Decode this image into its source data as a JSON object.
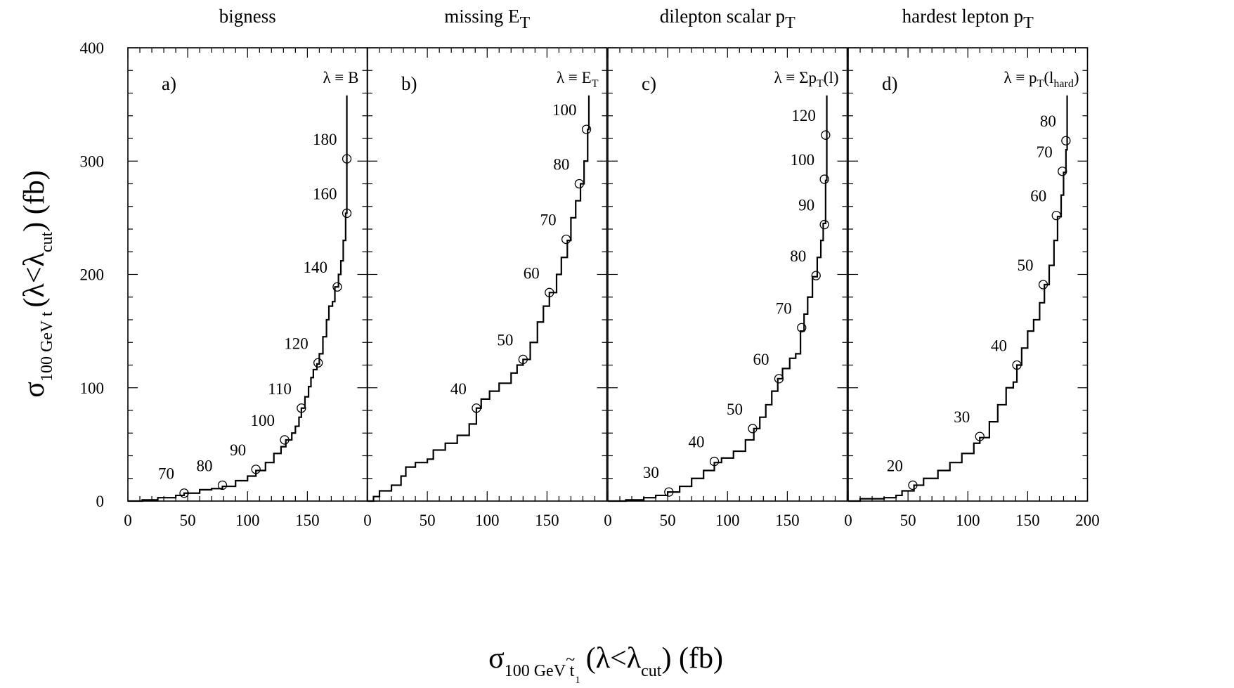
{
  "y_axis_title": {
    "main": "σ",
    "sub": "100 GeV t",
    "rest": "(λ<λ",
    "sub2": "cut",
    "end": ") (fb)"
  },
  "x_axis_title": {
    "main": "σ",
    "sub": "100 GeV t",
    "tilde": "~",
    "sub_sub": "1",
    "rest": "(λ<λ",
    "sub2": "cut",
    "end": ") (fb)"
  },
  "chart_data": [
    {
      "type": "line",
      "title": "bigness",
      "panel_label": "a)",
      "lambda_label": "λ ≡ B",
      "xlim": [
        0,
        200
      ],
      "ylim": [
        0,
        400
      ],
      "x_ticks": [
        "0",
        "50",
        "100",
        "150"
      ],
      "y_ticks": [
        "0",
        "100",
        "200",
        "300",
        "400"
      ],
      "curve": [
        [
          0,
          0
        ],
        [
          12,
          1
        ],
        [
          25,
          3
        ],
        [
          40,
          5
        ],
        [
          47,
          7
        ],
        [
          60,
          10
        ],
        [
          70,
          11
        ],
        [
          79,
          13
        ],
        [
          90,
          18
        ],
        [
          100,
          22
        ],
        [
          107,
          27
        ],
        [
          115,
          34
        ],
        [
          122,
          42
        ],
        [
          128,
          48
        ],
        [
          132,
          54
        ],
        [
          137,
          60
        ],
        [
          140,
          66
        ],
        [
          143,
          74
        ],
        [
          145,
          82
        ],
        [
          148,
          92
        ],
        [
          151,
          101
        ],
        [
          153,
          109
        ],
        [
          155,
          116
        ],
        [
          158,
          121
        ],
        [
          160,
          130
        ],
        [
          163,
          145
        ],
        [
          166,
          160
        ],
        [
          168,
          172
        ],
        [
          171,
          176
        ],
        [
          173,
          189
        ],
        [
          176,
          200
        ],
        [
          178,
          212
        ],
        [
          180,
          230
        ],
        [
          182,
          254
        ],
        [
          183,
          272
        ],
        [
          183,
          301
        ],
        [
          183,
          358
        ]
      ],
      "markers": [
        {
          "x": 47,
          "y": 7,
          "label": "70"
        },
        {
          "x": 79,
          "y": 14,
          "label": "80"
        },
        {
          "x": 107,
          "y": 28,
          "label": "90"
        },
        {
          "x": 131,
          "y": 54,
          "label": "100"
        },
        {
          "x": 145,
          "y": 82,
          "label": "110"
        },
        {
          "x": 159,
          "y": 122,
          "label": "120"
        },
        {
          "x": 175,
          "y": 189,
          "label": "140"
        },
        {
          "x": 183,
          "y": 254,
          "label": "160"
        },
        {
          "x": 183,
          "y": 302,
          "label": "180"
        }
      ]
    },
    {
      "type": "line",
      "title": "missing E",
      "title_sub": "T",
      "panel_label": "b)",
      "lambda_label": "λ ≡ E",
      "lambda_sub": "T",
      "xlim": [
        0,
        200
      ],
      "ylim": [
        0,
        400
      ],
      "x_ticks": [
        "0",
        "50",
        "100",
        "150"
      ],
      "y_ticks": [],
      "curve": [
        [
          0,
          0
        ],
        [
          5,
          4
        ],
        [
          10,
          9
        ],
        [
          20,
          14
        ],
        [
          28,
          22
        ],
        [
          32,
          30
        ],
        [
          40,
          34
        ],
        [
          50,
          37
        ],
        [
          55,
          45
        ],
        [
          65,
          51
        ],
        [
          75,
          58
        ],
        [
          85,
          68
        ],
        [
          91,
          82
        ],
        [
          95,
          90
        ],
        [
          102,
          97
        ],
        [
          110,
          104
        ],
        [
          120,
          113
        ],
        [
          125,
          120
        ],
        [
          130,
          125
        ],
        [
          136,
          140
        ],
        [
          142,
          158
        ],
        [
          147,
          172
        ],
        [
          152,
          184
        ],
        [
          158,
          200
        ],
        [
          162,
          215
        ],
        [
          167,
          230
        ],
        [
          170,
          250
        ],
        [
          174,
          265
        ],
        [
          178,
          280
        ],
        [
          181,
          300
        ],
        [
          184,
          328
        ],
        [
          185,
          358
        ]
      ],
      "markers": [
        {
          "x": 91,
          "y": 82,
          "label": "40"
        },
        {
          "x": 130,
          "y": 125,
          "label": "50"
        },
        {
          "x": 152,
          "y": 184,
          "label": "60"
        },
        {
          "x": 166,
          "y": 231,
          "label": "70"
        },
        {
          "x": 177,
          "y": 280,
          "label": "80"
        },
        {
          "x": 183,
          "y": 328,
          "label": "100"
        }
      ]
    },
    {
      "type": "line",
      "title": "dilepton scalar p",
      "title_sub": "T",
      "panel_label": "c)",
      "lambda_label": "λ ≡ Σp",
      "lambda_sub": "T",
      "lambda_end": "(l)",
      "xlim": [
        0,
        200
      ],
      "ylim": [
        0,
        400
      ],
      "x_ticks": [
        "0",
        "50",
        "100",
        "150"
      ],
      "y_ticks": [],
      "curve": [
        [
          0,
          0
        ],
        [
          15,
          1
        ],
        [
          30,
          3
        ],
        [
          40,
          5
        ],
        [
          50,
          8
        ],
        [
          60,
          13
        ],
        [
          70,
          20
        ],
        [
          80,
          27
        ],
        [
          89,
          34
        ],
        [
          95,
          38
        ],
        [
          105,
          44
        ],
        [
          115,
          54
        ],
        [
          122,
          64
        ],
        [
          127,
          74
        ],
        [
          132,
          85
        ],
        [
          137,
          97
        ],
        [
          142,
          108
        ],
        [
          146,
          117
        ],
        [
          152,
          126
        ],
        [
          157,
          130
        ],
        [
          161,
          150
        ],
        [
          164,
          165
        ],
        [
          167,
          180
        ],
        [
          171,
          198
        ],
        [
          175,
          215
        ],
        [
          178,
          230
        ],
        [
          180,
          245
        ],
        [
          182,
          283
        ],
        [
          183,
          322
        ],
        [
          183,
          358
        ]
      ],
      "markers": [
        {
          "x": 51,
          "y": 8,
          "label": "30"
        },
        {
          "x": 89,
          "y": 35,
          "label": "40"
        },
        {
          "x": 121,
          "y": 64,
          "label": "50"
        },
        {
          "x": 143,
          "y": 108,
          "label": "60"
        },
        {
          "x": 162,
          "y": 153,
          "label": "70"
        },
        {
          "x": 174,
          "y": 199,
          "label": "80"
        },
        {
          "x": 181,
          "y": 244,
          "label": "90"
        },
        {
          "x": 181,
          "y": 284,
          "label": "100"
        },
        {
          "x": 182,
          "y": 323,
          "label": "120"
        }
      ]
    },
    {
      "type": "line",
      "title": "hardest lepton p",
      "title_sub": "T",
      "panel_label": "d)",
      "lambda_label": "λ ≡ p",
      "lambda_sub": "T",
      "lambda_mid": "(l",
      "lambda_sub2": "hard",
      "lambda_end": ")",
      "xlim": [
        0,
        200
      ],
      "ylim": [
        0,
        400
      ],
      "x_ticks": [
        "0",
        "50",
        "100",
        "150",
        "200"
      ],
      "y_ticks": [],
      "curve": [
        [
          0,
          0
        ],
        [
          10,
          2
        ],
        [
          30,
          3
        ],
        [
          40,
          5
        ],
        [
          45,
          9
        ],
        [
          55,
          14
        ],
        [
          63,
          20
        ],
        [
          75,
          27
        ],
        [
          85,
          34
        ],
        [
          95,
          42
        ],
        [
          105,
          51
        ],
        [
          110,
          56
        ],
        [
          118,
          70
        ],
        [
          125,
          85
        ],
        [
          132,
          100
        ],
        [
          138,
          105
        ],
        [
          141,
          120
        ],
        [
          145,
          135
        ],
        [
          150,
          150
        ],
        [
          155,
          160
        ],
        [
          160,
          175
        ],
        [
          164,
          191
        ],
        [
          168,
          208
        ],
        [
          172,
          230
        ],
        [
          175,
          251
        ],
        [
          178,
          270
        ],
        [
          180,
          290
        ],
        [
          182,
          310
        ],
        [
          183,
          318
        ],
        [
          183,
          358
        ]
      ],
      "markers": [
        {
          "x": 54,
          "y": 14,
          "label": "20"
        },
        {
          "x": 110,
          "y": 57,
          "label": "30"
        },
        {
          "x": 141,
          "y": 120,
          "label": "40"
        },
        {
          "x": 163,
          "y": 191,
          "label": "50"
        },
        {
          "x": 174,
          "y": 252,
          "label": "60"
        },
        {
          "x": 179,
          "y": 291,
          "label": "70"
        },
        {
          "x": 182,
          "y": 318,
          "label": "80"
        }
      ]
    }
  ]
}
